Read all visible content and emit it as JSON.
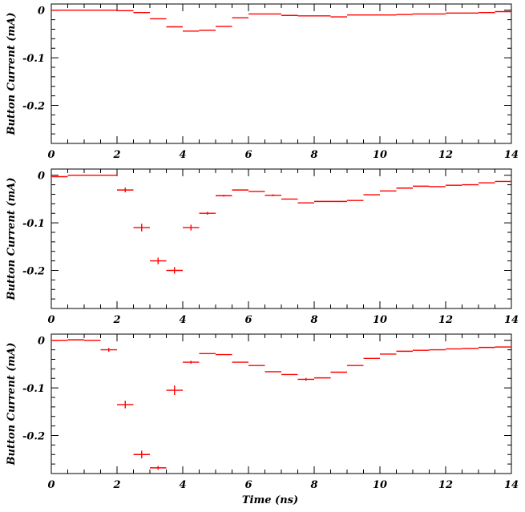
{
  "chart_data": [
    {
      "type": "scatter",
      "xlabel": "",
      "ylabel": "Button Current (mA)",
      "xlim": [
        0,
        14
      ],
      "ylim": [
        -0.28,
        0.013
      ],
      "xticks": [
        0,
        2,
        4,
        6,
        8,
        10,
        12,
        14
      ],
      "yticks": [
        0,
        -0.1,
        -0.2
      ],
      "xtick_labels": [
        "0",
        "2",
        "4",
        "6",
        "8",
        "10",
        "12",
        "14"
      ],
      "ytick_labels": [
        "0",
        "-0.1",
        "-0.2"
      ],
      "bin_width": 0.5,
      "series": [
        {
          "color": "#ff0000",
          "x": [
            0.25,
            0.75,
            1.25,
            1.75,
            2.25,
            2.75,
            3.25,
            3.75,
            4.25,
            4.75,
            5.25,
            5.75,
            6.25,
            6.75,
            7.25,
            7.75,
            8.25,
            8.75,
            9.25,
            9.75,
            10.25,
            10.75,
            11.25,
            11.75,
            12.25,
            12.75,
            13.25,
            13.75
          ],
          "y": [
            0,
            0,
            0,
            0,
            -0.001,
            -0.005,
            -0.018,
            -0.035,
            -0.044,
            -0.042,
            -0.034,
            -0.016,
            -0.008,
            -0.008,
            -0.011,
            -0.012,
            -0.012,
            -0.014,
            -0.01,
            -0.01,
            -0.01,
            -0.009,
            -0.008,
            -0.008,
            -0.006,
            -0.006,
            -0.005,
            -0.003
          ],
          "yerr": [
            0,
            0,
            0,
            0,
            0,
            0,
            0,
            0,
            0,
            0,
            0,
            0,
            0,
            0,
            0,
            0,
            0,
            0,
            0,
            0,
            0,
            0,
            0,
            0,
            0,
            0,
            0,
            0
          ]
        }
      ]
    },
    {
      "type": "scatter",
      "xlabel": "",
      "ylabel": "Button Current (mA)",
      "xlim": [
        0,
        14
      ],
      "ylim": [
        -0.28,
        0.013
      ],
      "xticks": [
        0,
        2,
        4,
        6,
        8,
        10,
        12,
        14
      ],
      "yticks": [
        0,
        -0.1,
        -0.2
      ],
      "xtick_labels": [
        "0",
        "2",
        "4",
        "6",
        "8",
        "10",
        "12",
        "14"
      ],
      "ytick_labels": [
        "0",
        "-0.1",
        "-0.2"
      ],
      "bin_width": 0.5,
      "series": [
        {
          "color": "#ff0000",
          "x": [
            0.25,
            0.75,
            1.25,
            1.75,
            2.25,
            2.75,
            3.25,
            3.75,
            4.25,
            4.75,
            5.25,
            5.75,
            6.25,
            6.75,
            7.25,
            7.75,
            8.25,
            8.75,
            9.25,
            9.75,
            10.25,
            10.75,
            11.25,
            11.75,
            12.25,
            12.75,
            13.25,
            13.75
          ],
          "y": [
            -0.003,
            0,
            0,
            0,
            -0.031,
            -0.11,
            -0.18,
            -0.2,
            -0.11,
            -0.08,
            -0.043,
            -0.031,
            -0.034,
            -0.042,
            -0.05,
            -0.058,
            -0.055,
            -0.055,
            -0.053,
            -0.041,
            -0.033,
            -0.027,
            -0.023,
            -0.024,
            -0.021,
            -0.02,
            -0.016,
            -0.013
          ],
          "yerr": [
            0,
            0,
            0,
            0,
            0.005,
            0.008,
            0.007,
            0.007,
            0.006,
            0.003,
            0.002,
            0,
            0,
            0.002,
            0,
            0,
            0,
            0,
            0,
            0,
            0,
            0,
            0,
            0,
            0,
            0,
            0,
            0
          ]
        }
      ]
    },
    {
      "type": "scatter",
      "xlabel": "Time (ns)",
      "ylabel": "Button Current (mA)",
      "xlim": [
        0,
        14
      ],
      "ylim": [
        -0.28,
        0.013
      ],
      "xticks": [
        0,
        2,
        4,
        6,
        8,
        10,
        12,
        14
      ],
      "yticks": [
        0,
        -0.1,
        -0.2
      ],
      "xtick_labels": [
        "0",
        "2",
        "4",
        "6",
        "8",
        "10",
        "12",
        "14"
      ],
      "ytick_labels": [
        "0",
        "-0.1",
        "-0.2"
      ],
      "bin_width": 0.5,
      "series": [
        {
          "color": "#ff0000",
          "x": [
            0.25,
            0.75,
            1.25,
            1.75,
            2.25,
            2.75,
            3.25,
            3.75,
            4.25,
            4.75,
            5.25,
            5.75,
            6.25,
            6.75,
            7.25,
            7.75,
            8.25,
            8.75,
            9.25,
            9.75,
            10.25,
            10.75,
            11.25,
            11.75,
            12.25,
            12.75,
            13.25,
            13.75
          ],
          "y": [
            0,
            0.001,
            0,
            -0.02,
            -0.135,
            -0.24,
            -0.268,
            -0.105,
            -0.046,
            -0.028,
            -0.03,
            -0.046,
            -0.053,
            -0.066,
            -0.072,
            -0.082,
            -0.079,
            -0.067,
            -0.053,
            -0.038,
            -0.029,
            -0.023,
            -0.021,
            -0.02,
            -0.018,
            -0.017,
            -0.015,
            -0.014
          ],
          "yerr": [
            0,
            0,
            0,
            0.004,
            0.008,
            0.008,
            0.004,
            0.01,
            0.003,
            0,
            0,
            0,
            0,
            0,
            0,
            0.003,
            0,
            0,
            0,
            0,
            0,
            0,
            0,
            0,
            0,
            0,
            0,
            0
          ]
        }
      ]
    }
  ]
}
